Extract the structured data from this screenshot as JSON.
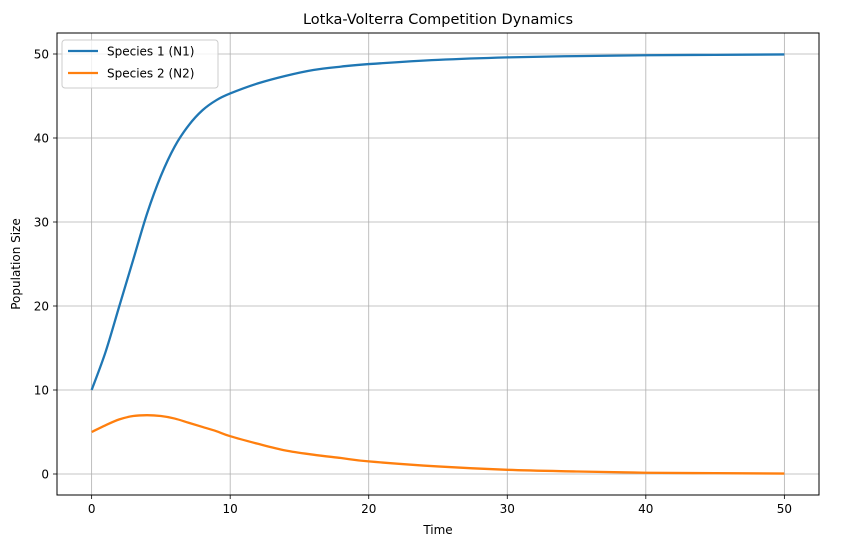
{
  "chart_data": {
    "type": "line",
    "title": "Lotka-Volterra Competition Dynamics",
    "xlabel": "Time",
    "ylabel": "Population Size",
    "xlim": [
      -2.5,
      52.5
    ],
    "ylim": [
      -2.5,
      52.5
    ],
    "xticks": [
      0,
      10,
      20,
      30,
      40,
      50
    ],
    "yticks": [
      0,
      10,
      20,
      30,
      40,
      50
    ],
    "grid": true,
    "legend_position": "upper-left",
    "series": [
      {
        "name": "Species 1 (N1)",
        "color": "#1f77b4",
        "x": [
          0,
          1,
          2,
          3,
          4,
          5,
          6,
          7,
          8,
          9,
          10,
          12,
          14,
          16,
          18,
          20,
          25,
          30,
          35,
          40,
          45,
          50
        ],
        "y": [
          10,
          14.5,
          20,
          25.5,
          31,
          35.5,
          39,
          41.5,
          43.3,
          44.5,
          45.3,
          46.5,
          47.4,
          48.1,
          48.5,
          48.8,
          49.3,
          49.6,
          49.75,
          49.85,
          49.9,
          49.95
        ]
      },
      {
        "name": "Species 2 (N2)",
        "color": "#ff7f0e",
        "x": [
          0,
          1,
          2,
          3,
          4,
          5,
          6,
          7,
          8,
          9,
          10,
          12,
          14,
          16,
          18,
          20,
          25,
          30,
          35,
          40,
          45,
          50
        ],
        "y": [
          5,
          5.8,
          6.5,
          6.9,
          7.0,
          6.9,
          6.6,
          6.1,
          5.6,
          5.1,
          4.5,
          3.6,
          2.8,
          2.3,
          1.9,
          1.5,
          0.9,
          0.5,
          0.3,
          0.15,
          0.1,
          0.05
        ]
      }
    ]
  }
}
